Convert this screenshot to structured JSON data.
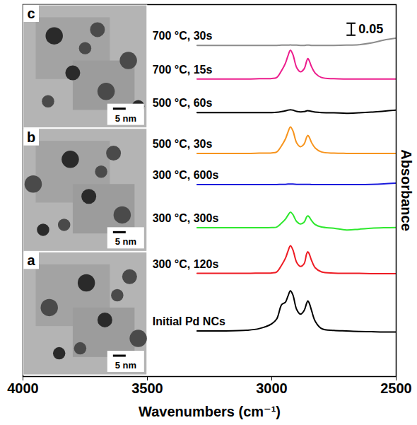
{
  "chart_data": {
    "type": "line",
    "x_label": "Wavenumbers (cm⁻¹)",
    "y_label": "Absorbance",
    "xlim": [
      4000,
      2500
    ],
    "xticks": [
      4000,
      3500,
      3000,
      2500
    ],
    "ylim": [
      0,
      1.55
    ],
    "yticks": [],
    "tick_labels": "x",
    "grid": false,
    "scale_bar": 0.05,
    "panels": [
      {
        "label": "c",
        "scale_bar": "5 nm"
      },
      {
        "label": "b",
        "scale_bar": "5 nm"
      },
      {
        "label": "a",
        "scale_bar": "5 nm"
      }
    ],
    "x": [
      3300,
      3200,
      3100,
      3050,
      3000,
      2980,
      2960,
      2945,
      2935,
      2925,
      2915,
      2900,
      2885,
      2870,
      2860,
      2855,
      2850,
      2840,
      2825,
      2800,
      2750,
      2700,
      2650,
      2600,
      2550,
      2500
    ],
    "series": [
      {
        "name": "Initial Pd NCs",
        "color": "#000000",
        "values": [
          0.19,
          0.19,
          0.193,
          0.2,
          0.22,
          0.24,
          0.3,
          0.31,
          0.335,
          0.357,
          0.34,
          0.28,
          0.26,
          0.275,
          0.305,
          0.315,
          0.308,
          0.275,
          0.23,
          0.2,
          0.192,
          0.19,
          0.188,
          0.187,
          0.186,
          0.186
        ]
      },
      {
        "name": "300 °C, 120s",
        "color": "#ee1c24",
        "values": [
          0.43,
          0.43,
          0.43,
          0.431,
          0.432,
          0.436,
          0.465,
          0.493,
          0.522,
          0.545,
          0.528,
          0.476,
          0.459,
          0.47,
          0.511,
          0.52,
          0.513,
          0.484,
          0.453,
          0.436,
          0.431,
          0.43,
          0.43,
          0.429,
          0.429,
          0.429
        ]
      },
      {
        "name": "300 °C, 300s",
        "color": "#2ee82e",
        "values": [
          0.62,
          0.62,
          0.62,
          0.62,
          0.621,
          0.623,
          0.64,
          0.656,
          0.672,
          0.685,
          0.675,
          0.646,
          0.636,
          0.643,
          0.665,
          0.67,
          0.666,
          0.65,
          0.633,
          0.623,
          0.618,
          0.611,
          0.614,
          0.618,
          0.62,
          0.621
        ]
      },
      {
        "name": "300 °C, 600s",
        "color": "#1a1adc",
        "values": [
          0.8,
          0.8,
          0.8,
          0.8,
          0.8,
          0.8,
          0.801,
          0.801,
          0.802,
          0.802,
          0.802,
          0.801,
          0.801,
          0.801,
          0.801,
          0.801,
          0.801,
          0.8,
          0.8,
          0.8,
          0.8,
          0.8,
          0.8,
          0.801,
          0.803,
          0.806
        ]
      },
      {
        "name": "500 °C, 30s",
        "color": "#f7941d",
        "values": [
          0.93,
          0.93,
          0.93,
          0.931,
          0.932,
          0.936,
          0.963,
          0.99,
          1.018,
          1.04,
          1.024,
          0.974,
          0.958,
          0.969,
          0.997,
          1.005,
          0.999,
          0.975,
          0.952,
          0.936,
          0.931,
          0.93,
          0.93,
          0.93,
          0.93,
          0.93
        ]
      },
      {
        "name": "500 °C, 60s",
        "color": "#000000",
        "values": [
          1.1,
          1.1,
          1.1,
          1.1,
          1.1,
          1.101,
          1.104,
          1.107,
          1.11,
          1.112,
          1.11,
          1.105,
          1.103,
          1.104,
          1.107,
          1.108,
          1.107,
          1.105,
          1.102,
          1.1,
          1.099,
          1.097,
          1.099,
          1.102,
          1.106,
          1.11
        ]
      },
      {
        "name": "700 °C, 15s",
        "color": "#ec1c8c",
        "values": [
          1.24,
          1.24,
          1.24,
          1.241,
          1.242,
          1.246,
          1.276,
          1.306,
          1.336,
          1.36,
          1.342,
          1.288,
          1.27,
          1.282,
          1.314,
          1.325,
          1.318,
          1.291,
          1.264,
          1.246,
          1.241,
          1.24,
          1.24,
          1.24,
          1.24,
          1.24
        ]
      },
      {
        "name": "700 °C, 30s",
        "color": "#8c8c8c",
        "values": [
          1.38,
          1.38,
          1.38,
          1.38,
          1.38,
          1.38,
          1.381,
          1.381,
          1.381,
          1.382,
          1.381,
          1.381,
          1.38,
          1.38,
          1.381,
          1.381,
          1.381,
          1.38,
          1.38,
          1.38,
          1.38,
          1.381,
          1.383,
          1.39,
          1.402,
          1.41
        ]
      }
    ]
  }
}
